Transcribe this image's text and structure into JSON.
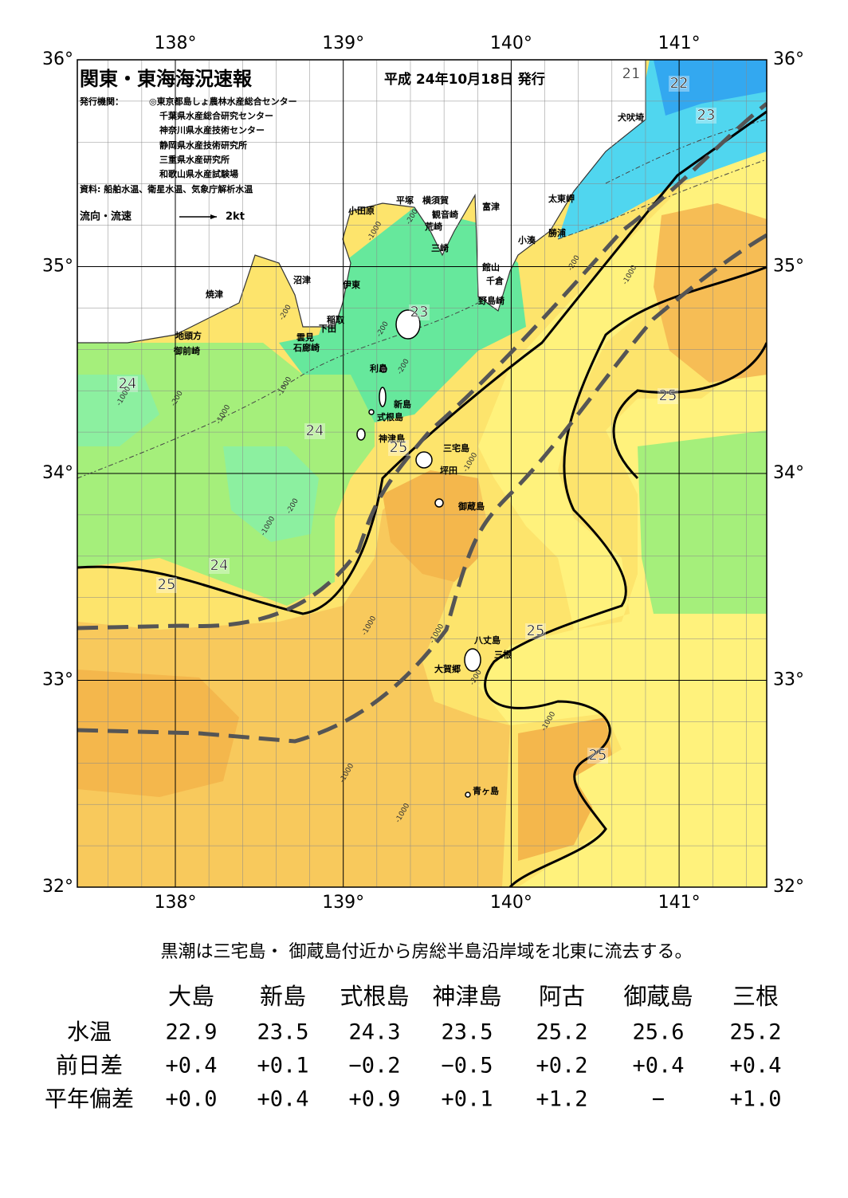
{
  "header": {
    "title": "関東・東海海況速報",
    "date": "平成 24年10月18日 発行",
    "publisher_label": "発行機関：",
    "publishers": [
      "◎東京都島しょ農林水産総合センター",
      "千葉県水産総合研究センター",
      "神奈川県水産技術センター",
      "静岡県水産技術研究所",
      "三重県水産研究所",
      "和歌山県水産試験場"
    ],
    "source": "資料: 船舶水温、衛星水温、気象庁解析水温",
    "legend": {
      "label": "流向・流速",
      "unit": "2kt"
    }
  },
  "map": {
    "lon_ticks": [
      {
        "value": 138,
        "label": "138°"
      },
      {
        "value": 139,
        "label": "139°"
      },
      {
        "value": 140,
        "label": "140°"
      },
      {
        "value": 141,
        "label": "141°"
      }
    ],
    "lat_ticks": [
      {
        "value": 36,
        "label": "36°"
      },
      {
        "value": 35,
        "label": "35°"
      },
      {
        "value": 34,
        "label": "34°"
      },
      {
        "value": 33,
        "label": "33°"
      },
      {
        "value": 32,
        "label": "32°"
      }
    ],
    "places": [
      "小田原",
      "平塚",
      "横須賀",
      "観音崎",
      "富津",
      "荒崎",
      "三崎",
      "太東岬",
      "勝浦",
      "小湊",
      "館山",
      "千倉",
      "野島崎",
      "沼津",
      "伊東",
      "焼津",
      "稲取",
      "下田",
      "雲見",
      "石廊崎",
      "地頭方",
      "御前崎",
      "利島",
      "新島",
      "式根島",
      "神津島",
      "三宅島",
      "坪田",
      "御蔵島",
      "八丈島",
      "三根",
      "大賀郷",
      "青ヶ島",
      "犬吠埼"
    ],
    "temperature_labels": [
      "21",
      "22",
      "23",
      "23",
      "24",
      "24",
      "24",
      "25",
      "25",
      "25",
      "25",
      "25"
    ],
    "depth_labels": [
      "-200",
      "-1000",
      "-200",
      "-200",
      "-200",
      "-1000",
      "-200",
      "-1000",
      "-1000",
      "-200",
      "-1000",
      "-1000",
      "-1000",
      "-1000",
      "-200",
      "-1000",
      "-1000",
      "-1000",
      "-200",
      "-1000"
    ]
  },
  "summary": "黒潮は三宅島・ 御蔵島付近から房総半島沿岸域を北東に流去する。",
  "table": {
    "columns": [
      "大島",
      "新島",
      "式根島",
      "神津島",
      "阿古",
      "御蔵島",
      "三根"
    ],
    "rows": [
      {
        "label": "水温",
        "values": [
          "22.9",
          "23.5",
          "24.3",
          "23.5",
          "25.2",
          "25.6",
          "25.2"
        ]
      },
      {
        "label": "前日差",
        "values": [
          "+0.4",
          "+0.1",
          "−0.2",
          "−0.5",
          "+0.2",
          "+0.4",
          "+0.4"
        ]
      },
      {
        "label": "平年偏差",
        "values": [
          "+0.0",
          "+0.4",
          "+0.9",
          "+0.1",
          "+1.2",
          "−",
          "+1.0"
        ]
      }
    ]
  }
}
